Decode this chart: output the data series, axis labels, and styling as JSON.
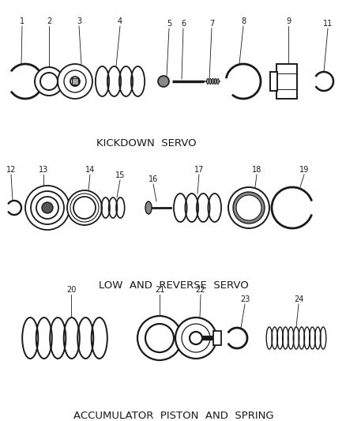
{
  "background_color": "#ffffff",
  "line_color": "#1a1a1a",
  "section_labels": [
    "KICKDOWN  SERVO",
    "LOW  AND  REVERSE  SERVO",
    "ACCUMULATOR  PISTON  AND  SPRING"
  ],
  "figsize": [
    4.39,
    5.33
  ],
  "dpi": 100
}
